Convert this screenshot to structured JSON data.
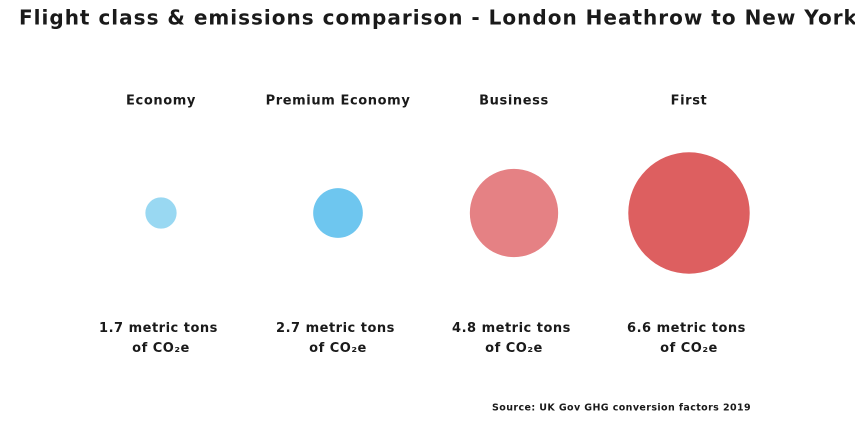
{
  "chart_data": {
    "type": "bubble",
    "title": "Flight class & emissions comparison - London Heathrow to New York JFK:",
    "categories": [
      "Economy",
      "Premium Economy",
      "Business",
      "First"
    ],
    "values": [
      1.7,
      2.7,
      4.8,
      6.6
    ],
    "value_labels": [
      "1.7 metric tons of CO₂e",
      "2.7 metric tons of CO₂e",
      "4.8 metric tons of CO₂e",
      "6.6 metric tons of CO₂e"
    ],
    "colors": [
      "#99d8f2",
      "#6ec6ef",
      "#e58184",
      "#dd5f60"
    ],
    "source": "Source: UK Gov GHG conversion factors 2019"
  }
}
